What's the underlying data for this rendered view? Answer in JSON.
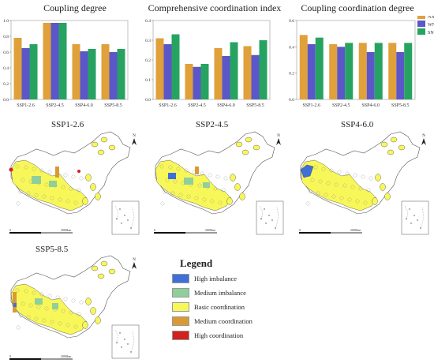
{
  "charts": [
    {
      "title": "Coupling degree",
      "categories": [
        "SSP1-2.6",
        "SSP2-4.5",
        "SSP4-6.0",
        "SSP5-8.5"
      ],
      "ylim": [
        0,
        1.0
      ],
      "yticks": [
        "0.0",
        "0.2",
        "0.4",
        "0.6",
        "0.8",
        "1.0"
      ]
    },
    {
      "title": "Comprehensive coordination index",
      "categories": [
        "SSP1-2.6",
        "SSP2-4.5",
        "SSP4-6.0",
        "SSP5-8.5"
      ],
      "ylim": [
        0,
        0.4
      ],
      "yticks": [
        "0.0",
        "0.1",
        "0.2",
        "0.3",
        "0.4"
      ]
    },
    {
      "title": "Coupling coordination degree",
      "categories": [
        "SSP1-2.6",
        "SSP2-4.5",
        "SSP4-6.0",
        "SSP5-8.5"
      ],
      "ylim": [
        0,
        0.6
      ],
      "yticks": [
        "0.0",
        "0.2",
        "0.4",
        "0.6"
      ]
    }
  ],
  "chart_data": [
    {
      "type": "bar",
      "title": "Coupling degree",
      "categories": [
        "SSP1-2.6",
        "SSP2-4.5",
        "SSP4-6.0",
        "SSP5-8.5"
      ],
      "ylim": [
        0,
        1.0
      ],
      "series": [
        {
          "name": "NN",
          "values": [
            0.78,
            0.97,
            0.7,
            0.7
          ]
        },
        {
          "name": "WN",
          "values": [
            0.65,
            0.97,
            0.61,
            0.6
          ]
        },
        {
          "name": "SN",
          "values": [
            0.7,
            0.97,
            0.64,
            0.64
          ]
        }
      ]
    },
    {
      "type": "bar",
      "title": "Comprehensive coordination index",
      "categories": [
        "SSP1-2.6",
        "SSP2-4.5",
        "SSP4-6.0",
        "SSP5-8.5"
      ],
      "ylim": [
        0,
        0.4
      ],
      "series": [
        {
          "name": "NN",
          "values": [
            0.31,
            0.18,
            0.26,
            0.27
          ]
        },
        {
          "name": "WN",
          "values": [
            0.28,
            0.165,
            0.22,
            0.225
          ]
        },
        {
          "name": "SN",
          "values": [
            0.33,
            0.18,
            0.29,
            0.3
          ]
        }
      ]
    },
    {
      "type": "bar",
      "title": "Coupling coordination degree",
      "categories": [
        "SSP1-2.6",
        "SSP2-4.5",
        "SSP4-6.0",
        "SSP5-8.5"
      ],
      "ylim": [
        0,
        0.6
      ],
      "legend_position": "top-right",
      "series": [
        {
          "name": "NN",
          "values": [
            0.49,
            0.42,
            0.43,
            0.43
          ]
        },
        {
          "name": "WN",
          "values": [
            0.42,
            0.4,
            0.36,
            0.36
          ]
        },
        {
          "name": "SN",
          "values": [
            0.47,
            0.43,
            0.43,
            0.43
          ]
        }
      ]
    }
  ],
  "series_colors": {
    "NN": "#e0a03a",
    "WN": "#5b57c9",
    "SN": "#27a361"
  },
  "legend_series": [
    "NN",
    "WN",
    "SN"
  ],
  "maps": [
    {
      "title": "SSP1-2.6",
      "variant": "a"
    },
    {
      "title": "SSP2-4.5",
      "variant": "b"
    },
    {
      "title": "SSP4-6.0",
      "variant": "c"
    },
    {
      "title": "SSP5-8.5",
      "variant": "d"
    }
  ],
  "north_label": "N",
  "scale_label": "2000km",
  "scale_zero": "0",
  "map_legend": {
    "title": "Legend",
    "items": [
      {
        "label": "High imbalance",
        "color": "#3f6fd8"
      },
      {
        "label": "Medium imbalance",
        "color": "#8fcf9a"
      },
      {
        "label": "Basic coordination",
        "color": "#f8f75a"
      },
      {
        "label": "Medium coordination",
        "color": "#d99a35"
      },
      {
        "label": "High coordination",
        "color": "#d4201e"
      }
    ]
  }
}
